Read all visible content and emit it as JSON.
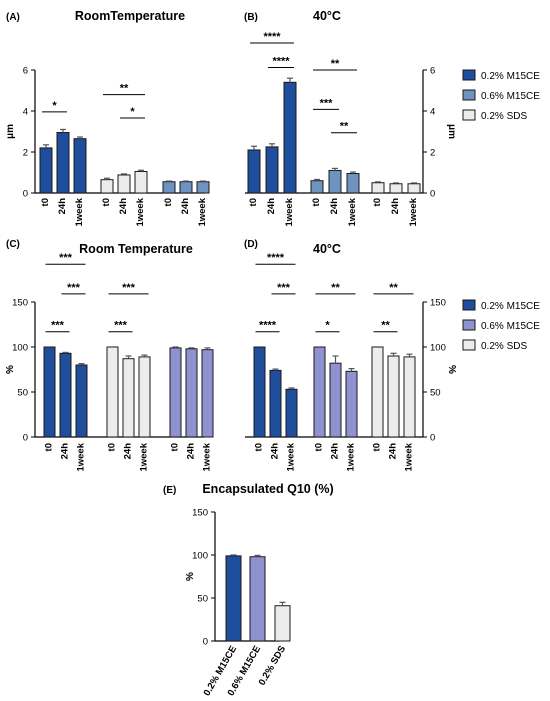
{
  "colors": {
    "m15ce_02": "#1f4e9c",
    "m15ce_06_A": "#6f93c1",
    "m15ce_06_C": "#8f92d0",
    "sds_02": "#ececec",
    "edge": "#1a1a1a",
    "error": "#555555"
  },
  "legends": [
    {
      "items": [
        {
          "label": "0.2% M15CE",
          "color": "#1f4e9c"
        },
        {
          "label": "0.6% M15CE",
          "color": "#6f93c1"
        },
        {
          "label": "0.2% SDS",
          "color": "#ececec"
        }
      ]
    },
    {
      "items": [
        {
          "label": "0.2% M15CE",
          "color": "#1f4e9c"
        },
        {
          "label": "0.6% M15CE",
          "color": "#8f92d0"
        },
        {
          "label": "0.2% SDS",
          "color": "#ececec"
        }
      ]
    }
  ],
  "chart_data": [
    {
      "panel": "(A)",
      "title": "RoomTemperature",
      "type": "bar",
      "ylabel": "μm",
      "ylim": [
        0,
        6
      ],
      "yticks": [
        0,
        2,
        4,
        6
      ],
      "ytick_side": "left",
      "groups": [
        {
          "color": "#1f4e9c",
          "categories": [
            "t0",
            "24h",
            "1week"
          ],
          "values": [
            2.2,
            2.95,
            2.65
          ],
          "errors": [
            0.15,
            0.15,
            0.08
          ]
        },
        {
          "color": "#ececec",
          "categories": [
            "t0",
            "24h",
            "1week"
          ],
          "values": [
            0.65,
            0.88,
            1.05
          ],
          "errors": [
            0.07,
            0.05,
            0.06
          ]
        },
        {
          "color": "#6f93c1",
          "categories": [
            "t0",
            "24h",
            "1week"
          ],
          "values": [
            0.55,
            0.55,
            0.55
          ],
          "errors": [
            0.03,
            0.03,
            0.03
          ]
        }
      ],
      "significance": [
        {
          "label": "*",
          "g": 0,
          "from": 0,
          "to": 1,
          "level": 0.66
        },
        {
          "label": "**",
          "g": 1,
          "from": 0,
          "to": 2,
          "level": 0.8
        },
        {
          "label": "*",
          "g": 1,
          "from": 1,
          "to": 2,
          "level": 0.61
        }
      ]
    },
    {
      "panel": "(B)",
      "title": "40°C",
      "type": "bar",
      "ylabel": "μm",
      "ylim": [
        0,
        6
      ],
      "yticks": [
        0,
        2,
        4,
        6
      ],
      "ytick_side": "right",
      "groups": [
        {
          "color": "#1f4e9c",
          "categories": [
            "t0",
            "24h",
            "1week"
          ],
          "values": [
            2.1,
            2.25,
            5.4
          ],
          "errors": [
            0.18,
            0.15,
            0.2
          ]
        },
        {
          "color": "#6f93c1",
          "categories": [
            "t0",
            "24h",
            "1week"
          ],
          "values": [
            0.6,
            1.1,
            0.95
          ],
          "errors": [
            0.06,
            0.1,
            0.07
          ]
        },
        {
          "color": "#ececec",
          "categories": [
            "t0",
            "24h",
            "1week"
          ],
          "values": [
            0.5,
            0.45,
            0.45
          ],
          "errors": [
            0.04,
            0.04,
            0.04
          ]
        }
      ],
      "significance": [
        {
          "label": "****",
          "g": 0,
          "from": 0,
          "to": 2,
          "level": 1.22
        },
        {
          "label": "****",
          "g": 0,
          "from": 1,
          "to": 2,
          "level": 1.02
        },
        {
          "label": "**",
          "g": 1,
          "from": 0,
          "to": 2,
          "level": 1.0
        },
        {
          "label": "***",
          "g": 1,
          "from": 0,
          "to": 1,
          "level": 0.68
        },
        {
          "label": "**",
          "g": 1,
          "from": 1,
          "to": 2,
          "level": 0.49
        }
      ]
    },
    {
      "panel": "(C)",
      "title": "Room Temperature",
      "type": "bar",
      "ylabel": "%",
      "ylim": [
        0,
        150
      ],
      "yticks": [
        0,
        50,
        100,
        150
      ],
      "ytick_side": "left",
      "groups": [
        {
          "color": "#1f4e9c",
          "categories": [
            "t0",
            "24h",
            "1week"
          ],
          "values": [
            100,
            93,
            80
          ],
          "errors": [
            0,
            1,
            1.5
          ]
        },
        {
          "color": "#ececec",
          "categories": [
            "t0",
            "24h",
            "1week"
          ],
          "values": [
            100,
            87,
            89
          ],
          "errors": [
            0,
            3,
            2
          ]
        },
        {
          "color": "#8f92d0",
          "categories": [
            "t0",
            "24h",
            "1week"
          ],
          "values": [
            99,
            98,
            97
          ],
          "errors": [
            1,
            1,
            2
          ]
        }
      ],
      "significance": [
        {
          "label": "***",
          "g": 0,
          "from": 0,
          "to": 2,
          "level": 1.28
        },
        {
          "label": "***",
          "g": 0,
          "from": 1,
          "to": 2,
          "level": 1.06
        },
        {
          "label": "***",
          "g": 0,
          "from": 0,
          "to": 1,
          "level": 0.78
        },
        {
          "label": "***",
          "g": 1,
          "from": 0,
          "to": 2,
          "level": 1.06
        },
        {
          "label": "***",
          "g": 1,
          "from": 0,
          "to": 1,
          "level": 0.78
        }
      ]
    },
    {
      "panel": "(D)",
      "title": "40°C",
      "type": "bar",
      "ylabel": "%",
      "ylim": [
        0,
        150
      ],
      "yticks": [
        0,
        50,
        100,
        150
      ],
      "ytick_side": "right",
      "groups": [
        {
          "color": "#1f4e9c",
          "categories": [
            "t0",
            "24h",
            "1week"
          ],
          "values": [
            100,
            74,
            53
          ],
          "errors": [
            0,
            1.5,
            1.5
          ]
        },
        {
          "color": "#8f92d0",
          "categories": [
            "t0",
            "24h",
            "1week"
          ],
          "values": [
            100,
            82,
            73
          ],
          "errors": [
            0,
            8,
            3
          ]
        },
        {
          "color": "#ececec",
          "categories": [
            "t0",
            "24h",
            "1week"
          ],
          "values": [
            100,
            90,
            89
          ],
          "errors": [
            0,
            3,
            3
          ]
        }
      ],
      "significance": [
        {
          "label": "****",
          "g": 0,
          "from": 0,
          "to": 2,
          "level": 1.28
        },
        {
          "label": "***",
          "g": 0,
          "from": 1,
          "to": 2,
          "level": 1.06
        },
        {
          "label": "****",
          "g": 0,
          "from": 0,
          "to": 1,
          "level": 0.78
        },
        {
          "label": "**",
          "g": 1,
          "from": 0,
          "to": 2,
          "level": 1.06
        },
        {
          "label": "*",
          "g": 1,
          "from": 0,
          "to": 1,
          "level": 0.78
        },
        {
          "label": "**",
          "g": 2,
          "from": 0,
          "to": 2,
          "level": 1.06
        },
        {
          "label": "**",
          "g": 2,
          "from": 0,
          "to": 1,
          "level": 0.78
        }
      ]
    },
    {
      "panel": "(E)",
      "title": "Encapsulated Q10 (%)",
      "type": "bar",
      "ylabel": "%",
      "ylim": [
        0,
        150
      ],
      "yticks": [
        0,
        50,
        100,
        150
      ],
      "ytick_side": "left",
      "categories": [
        "0.2% M15CE",
        "0.6% M15CE",
        "0.2% SDS"
      ],
      "values": [
        99,
        98,
        41
      ],
      "errors": [
        1,
        1.5,
        4
      ],
      "colors": [
        "#1f4e9c",
        "#8f92d0",
        "#ececec"
      ]
    }
  ]
}
